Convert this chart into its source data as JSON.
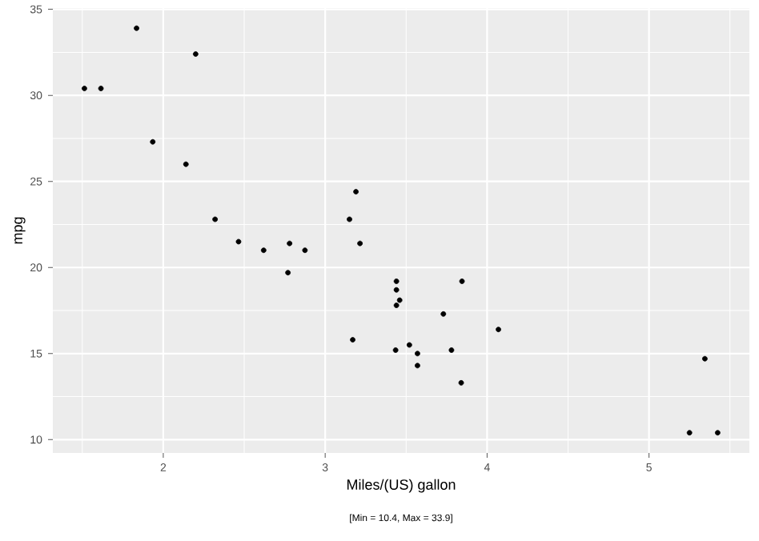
{
  "chart_data": {
    "type": "scatter",
    "xlabel": "Miles/(US) gallon",
    "ylabel": "mpg",
    "annotations": [
      "[Min = 10.4, Max = 33.9]"
    ],
    "x": [
      2.62,
      2.875,
      2.32,
      3.215,
      3.44,
      3.46,
      3.57,
      3.19,
      3.15,
      3.44,
      3.44,
      4.07,
      3.73,
      3.78,
      5.25,
      5.424,
      5.345,
      2.2,
      1.615,
      1.835,
      2.465,
      3.52,
      3.435,
      3.84,
      3.845,
      1.935,
      2.14,
      1.513,
      3.17,
      2.77,
      3.57,
      2.78
    ],
    "values": [
      21.0,
      21.0,
      22.8,
      21.4,
      18.7,
      18.1,
      14.3,
      24.4,
      22.8,
      19.2,
      17.8,
      16.4,
      17.3,
      15.2,
      10.4,
      10.4,
      14.7,
      32.4,
      30.4,
      33.9,
      21.5,
      15.5,
      15.2,
      13.3,
      19.2,
      27.3,
      26.0,
      30.4,
      15.8,
      19.7,
      15.0,
      21.4
    ],
    "color": "#000000",
    "grid": true,
    "xlim": [
      1.318,
      5.62
    ],
    "ylim": [
      9.225,
      35.075
    ],
    "xticks": [
      2,
      3,
      4,
      5
    ],
    "yticks": [
      10,
      15,
      20,
      25,
      30,
      35
    ]
  }
}
